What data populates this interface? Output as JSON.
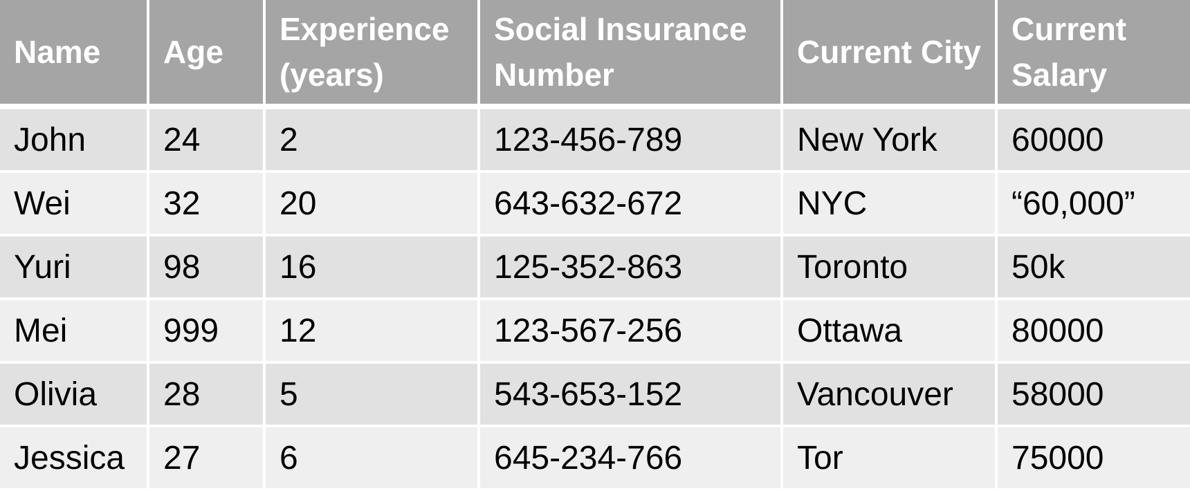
{
  "table": {
    "headers": [
      "Name",
      "Age",
      "Experience (years)",
      "Social Insurance Number",
      "Current City",
      "Current Salary"
    ],
    "rows": [
      [
        "John",
        "24",
        "2",
        "123-456-789",
        "New York",
        "60000"
      ],
      [
        "Wei",
        "32",
        "20",
        "643-632-672",
        "NYC",
        "“60,000”"
      ],
      [
        "Yuri",
        "98",
        "16",
        "125-352-863",
        "Toronto",
        "50k"
      ],
      [
        "Mei",
        "999",
        "12",
        "123-567-256",
        "Ottawa",
        "80000"
      ],
      [
        "Olivia",
        "28",
        "5",
        "543-653-152",
        "Vancouver",
        "58000"
      ],
      [
        "Jessica",
        "27",
        "6",
        "645-234-766",
        "Tor",
        "75000"
      ]
    ]
  },
  "colors": {
    "header_bg": "#a5a5a5",
    "header_text": "#ffffff",
    "row_odd_bg": "#e1e1e1",
    "row_even_bg": "#efefef",
    "cell_text": "#000000"
  }
}
